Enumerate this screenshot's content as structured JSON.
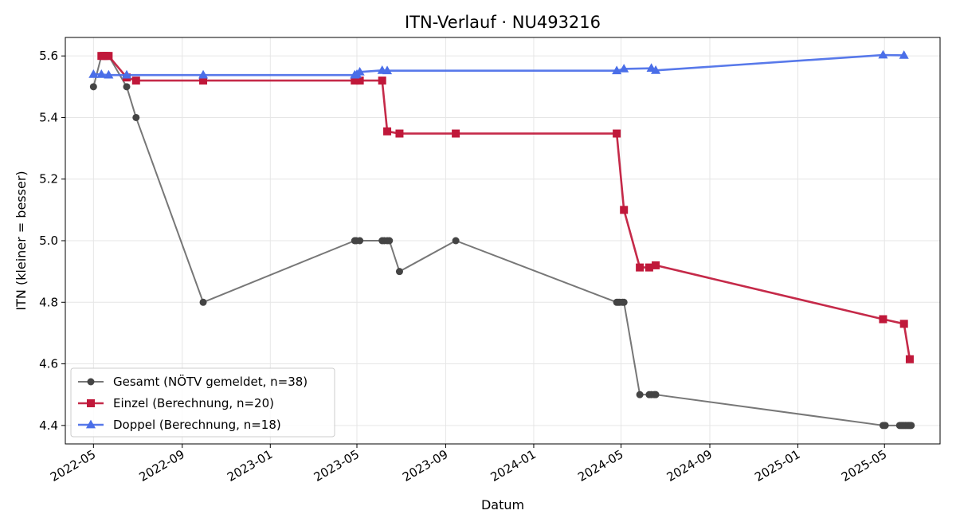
{
  "chart_data": {
    "type": "line",
    "title": "ITN-Verlauf · NU493216",
    "xlabel": "Datum",
    "ylabel": "ITN  (kleiner = besser)",
    "x_axis": "date",
    "xlim": [
      "2022-03-23",
      "2025-07-17"
    ],
    "ylim": [
      4.34,
      5.66
    ],
    "grid": true,
    "legend_position": "lower-left",
    "x_ticks": [
      "2022-05",
      "2022-09",
      "2023-01",
      "2023-05",
      "2023-09",
      "2024-01",
      "2024-05",
      "2024-09",
      "2025-01",
      "2025-05"
    ],
    "y_ticks": [
      "4.4",
      "4.6",
      "4.8",
      "5.0",
      "5.2",
      "5.4",
      "5.6"
    ],
    "series": [
      {
        "name": "Gesamt (NÖTV gemeldet, n=38)",
        "color": "#555555",
        "marker": "circle",
        "points": [
          [
            "2022-05-01",
            5.5
          ],
          [
            "2022-05-12",
            5.6
          ],
          [
            "2022-05-15",
            5.6
          ],
          [
            "2022-05-19",
            5.6
          ],
          [
            "2022-05-22",
            5.6
          ],
          [
            "2022-06-16",
            5.5
          ],
          [
            "2022-06-29",
            5.4
          ],
          [
            "2022-09-30",
            4.8
          ],
          [
            "2023-04-28",
            5.0
          ],
          [
            "2023-04-30",
            5.0
          ],
          [
            "2023-05-05",
            5.0
          ],
          [
            "2023-06-05",
            5.0
          ],
          [
            "2023-06-08",
            5.0
          ],
          [
            "2023-06-12",
            5.0
          ],
          [
            "2023-06-15",
            5.0
          ],
          [
            "2023-06-29",
            4.9
          ],
          [
            "2023-09-15",
            5.0
          ],
          [
            "2024-04-25",
            4.8
          ],
          [
            "2024-04-27",
            4.8
          ],
          [
            "2024-04-29",
            4.8
          ],
          [
            "2024-05-03",
            4.8
          ],
          [
            "2024-05-05",
            4.8
          ],
          [
            "2024-05-27",
            4.5
          ],
          [
            "2024-06-09",
            4.5
          ],
          [
            "2024-06-12",
            4.5
          ],
          [
            "2024-06-16",
            4.5
          ],
          [
            "2024-06-18",
            4.5
          ],
          [
            "2025-04-29",
            4.4
          ],
          [
            "2025-05-02",
            4.4
          ],
          [
            "2025-05-22",
            4.4
          ],
          [
            "2025-05-24",
            4.4
          ],
          [
            "2025-05-26",
            4.4
          ],
          [
            "2025-05-28",
            4.4
          ],
          [
            "2025-05-30",
            4.4
          ],
          [
            "2025-06-01",
            4.4
          ],
          [
            "2025-06-03",
            4.4
          ],
          [
            "2025-06-05",
            4.4
          ],
          [
            "2025-06-07",
            4.4
          ]
        ]
      },
      {
        "name": "Einzel (Berechnung, n=20)",
        "color": "#c0183a",
        "marker": "square",
        "points": [
          [
            "2022-05-12",
            5.6
          ],
          [
            "2022-05-15",
            5.6
          ],
          [
            "2022-05-19",
            5.6
          ],
          [
            "2022-05-22",
            5.6
          ],
          [
            "2022-06-16",
            5.53
          ],
          [
            "2022-06-29",
            5.52
          ],
          [
            "2022-09-30",
            5.52
          ],
          [
            "2023-04-28",
            5.52
          ],
          [
            "2023-05-05",
            5.52
          ],
          [
            "2023-06-05",
            5.52
          ],
          [
            "2023-06-12",
            5.355
          ],
          [
            "2023-06-29",
            5.348
          ],
          [
            "2023-09-15",
            5.348
          ],
          [
            "2024-04-25",
            5.348
          ],
          [
            "2024-05-05",
            5.1
          ],
          [
            "2024-05-27",
            4.913
          ],
          [
            "2024-06-09",
            4.913
          ],
          [
            "2024-06-18",
            4.92
          ],
          [
            "2025-04-29",
            4.745
          ],
          [
            "2025-05-28",
            4.73
          ],
          [
            "2025-06-05",
            4.615
          ]
        ]
      },
      {
        "name": "Doppel (Berechnung, n=18)",
        "color": "#4a6ee8",
        "marker": "triangle",
        "points": [
          [
            "2022-05-01",
            5.54
          ],
          [
            "2022-05-12",
            5.54
          ],
          [
            "2022-05-22",
            5.538
          ],
          [
            "2022-06-16",
            5.538
          ],
          [
            "2022-09-30",
            5.538
          ],
          [
            "2023-04-28",
            5.538
          ],
          [
            "2023-05-01",
            5.54
          ],
          [
            "2023-05-05",
            5.548
          ],
          [
            "2023-06-05",
            5.553
          ],
          [
            "2023-06-12",
            5.552
          ],
          [
            "2024-04-25",
            5.552
          ],
          [
            "2024-05-05",
            5.558
          ],
          [
            "2024-06-12",
            5.56
          ],
          [
            "2024-06-18",
            5.553
          ],
          [
            "2025-04-29",
            5.603
          ],
          [
            "2025-05-28",
            5.602
          ]
        ]
      }
    ]
  }
}
